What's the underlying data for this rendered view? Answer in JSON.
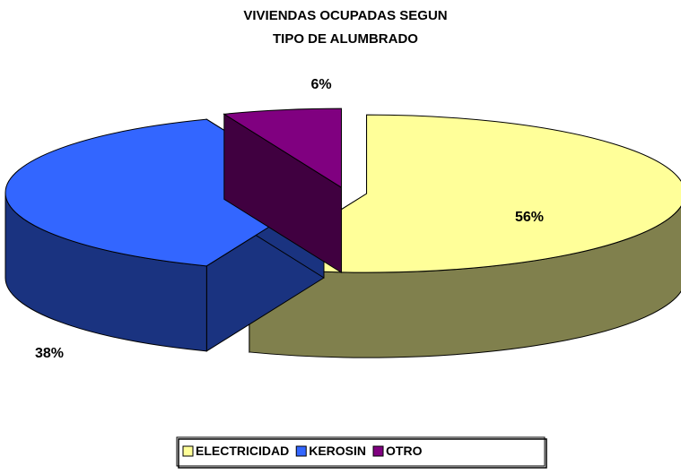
{
  "chart_data": {
    "type": "pie3d",
    "title": [
      "VIVIENDAS OCUPADAS SEGUN",
      "TIPO DE ALUMBRADO"
    ],
    "categories": [
      "ELECTRICIDAD",
      "KEROSIN",
      "OTRO"
    ],
    "values": [
      56,
      38,
      6
    ],
    "value_labels": [
      "56%",
      "38%",
      "6%"
    ],
    "colors": [
      "#ffff99",
      "#3366ff",
      "#800080"
    ],
    "legend": "bottom"
  }
}
